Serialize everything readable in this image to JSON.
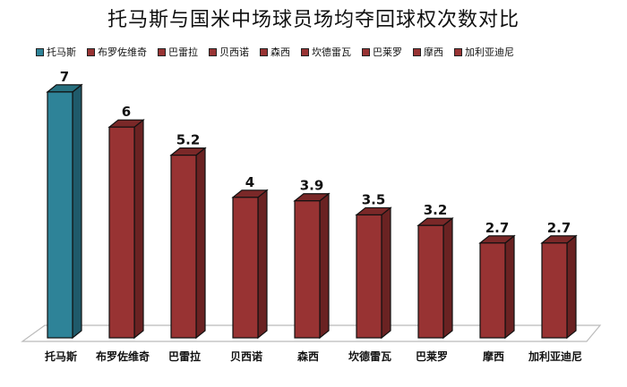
{
  "title": "托马斯与国米中场球员场均夺回球权次数对比",
  "colors": {
    "highlight": "#2E8398",
    "highlight_side": "#1F5A6A",
    "highlight_top": "#27707F",
    "default": "#983333",
    "default_side": "#6A2222",
    "default_top": "#7A2828"
  },
  "chart_data": {
    "type": "bar",
    "title": "托马斯与国米中场球员场均夺回球权次数对比",
    "categories": [
      "托马斯",
      "布罗佐维奇",
      "巴雷拉",
      "贝西诺",
      "森西",
      "坎德雷瓦",
      "巴莱罗",
      "摩西",
      "加利亚迪尼"
    ],
    "values": [
      7,
      6,
      5.2,
      4,
      3.9,
      3.5,
      3.2,
      2.7,
      2.7
    ],
    "series": [
      {
        "name": "托马斯",
        "values": [
          7
        ]
      },
      {
        "name": "布罗佐维奇",
        "values": [
          6
        ]
      },
      {
        "name": "巴雷拉",
        "values": [
          5.2
        ]
      },
      {
        "name": "贝西诺",
        "values": [
          4
        ]
      },
      {
        "name": "森西",
        "values": [
          3.9
        ]
      },
      {
        "name": "坎德雷瓦",
        "values": [
          3.5
        ]
      },
      {
        "name": "巴莱罗",
        "values": [
          3.2
        ]
      },
      {
        "name": "摩西",
        "values": [
          2.7
        ]
      },
      {
        "name": "加利亚迪尼",
        "values": [
          2.7
        ]
      }
    ],
    "value_labels": [
      "7",
      "6",
      "5.2",
      "4",
      "3.9",
      "3.5",
      "3.2",
      "2.7",
      "2.7"
    ],
    "xlabel": "",
    "ylabel": "",
    "ylim": [
      0,
      7
    ],
    "grid": false,
    "legend_position": "top",
    "style": "3d-column"
  },
  "legend": [
    {
      "label": "托马斯",
      "color": "#2E8398"
    },
    {
      "label": "布罗佐维奇",
      "color": "#983333"
    },
    {
      "label": "巴雷拉",
      "color": "#983333"
    },
    {
      "label": "贝西诺",
      "color": "#983333"
    },
    {
      "label": "森西",
      "color": "#983333"
    },
    {
      "label": "坎德雷瓦",
      "color": "#983333"
    },
    {
      "label": "巴莱罗",
      "color": "#983333"
    },
    {
      "label": "摩西",
      "color": "#983333"
    },
    {
      "label": "加利亚迪尼",
      "color": "#983333"
    }
  ]
}
